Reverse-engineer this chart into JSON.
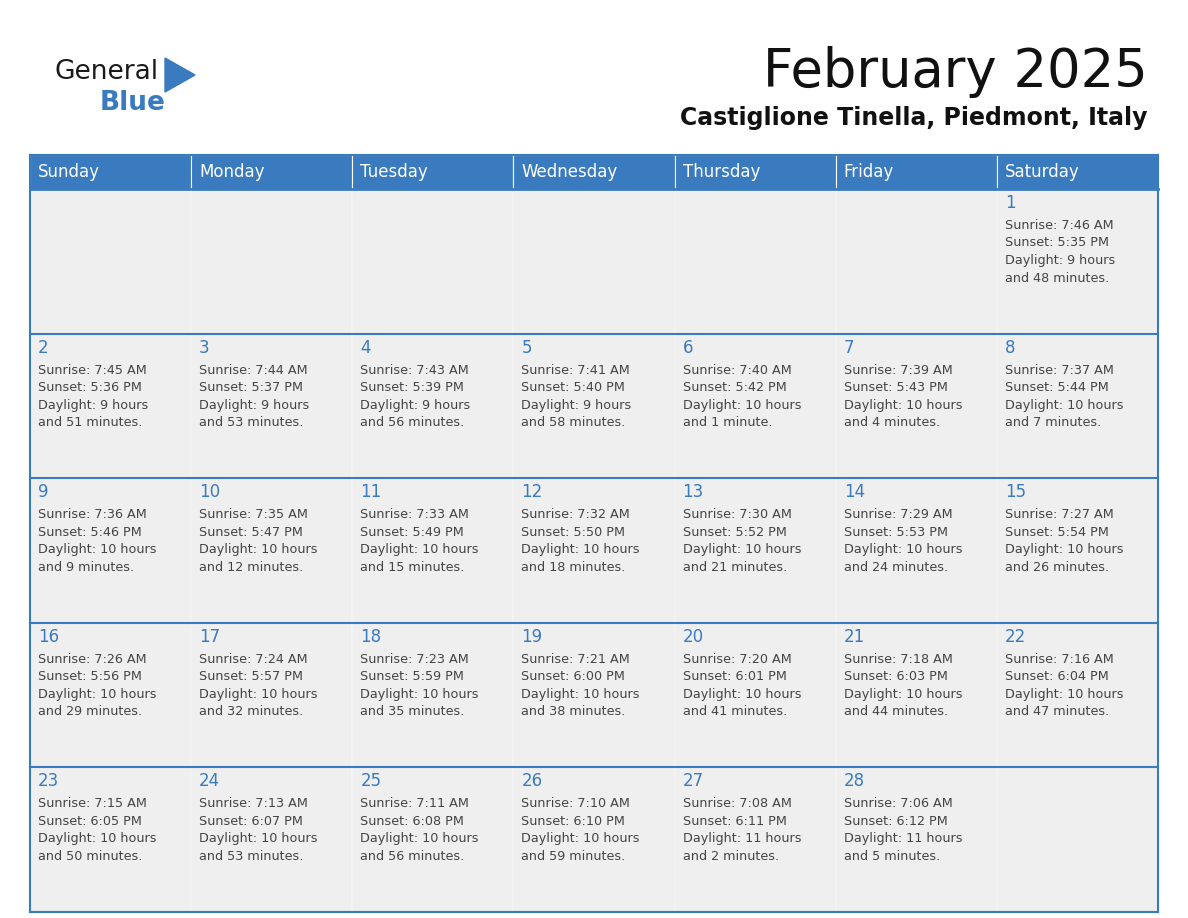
{
  "title": "February 2025",
  "subtitle": "Castiglione Tinella, Piedmont, Italy",
  "header_color": "#3a7abf",
  "header_text_color": "#ffffff",
  "border_color": "#3a7abf",
  "day_number_color": "#3a7abf",
  "text_color": "#444444",
  "cell_bg_color": "#efefef",
  "days_of_week": [
    "Sunday",
    "Monday",
    "Tuesday",
    "Wednesday",
    "Thursday",
    "Friday",
    "Saturday"
  ],
  "weeks": [
    [
      {
        "day": null,
        "info": null
      },
      {
        "day": null,
        "info": null
      },
      {
        "day": null,
        "info": null
      },
      {
        "day": null,
        "info": null
      },
      {
        "day": null,
        "info": null
      },
      {
        "day": null,
        "info": null
      },
      {
        "day": 1,
        "info": "Sunrise: 7:46 AM\nSunset: 5:35 PM\nDaylight: 9 hours\nand 48 minutes."
      }
    ],
    [
      {
        "day": 2,
        "info": "Sunrise: 7:45 AM\nSunset: 5:36 PM\nDaylight: 9 hours\nand 51 minutes."
      },
      {
        "day": 3,
        "info": "Sunrise: 7:44 AM\nSunset: 5:37 PM\nDaylight: 9 hours\nand 53 minutes."
      },
      {
        "day": 4,
        "info": "Sunrise: 7:43 AM\nSunset: 5:39 PM\nDaylight: 9 hours\nand 56 minutes."
      },
      {
        "day": 5,
        "info": "Sunrise: 7:41 AM\nSunset: 5:40 PM\nDaylight: 9 hours\nand 58 minutes."
      },
      {
        "day": 6,
        "info": "Sunrise: 7:40 AM\nSunset: 5:42 PM\nDaylight: 10 hours\nand 1 minute."
      },
      {
        "day": 7,
        "info": "Sunrise: 7:39 AM\nSunset: 5:43 PM\nDaylight: 10 hours\nand 4 minutes."
      },
      {
        "day": 8,
        "info": "Sunrise: 7:37 AM\nSunset: 5:44 PM\nDaylight: 10 hours\nand 7 minutes."
      }
    ],
    [
      {
        "day": 9,
        "info": "Sunrise: 7:36 AM\nSunset: 5:46 PM\nDaylight: 10 hours\nand 9 minutes."
      },
      {
        "day": 10,
        "info": "Sunrise: 7:35 AM\nSunset: 5:47 PM\nDaylight: 10 hours\nand 12 minutes."
      },
      {
        "day": 11,
        "info": "Sunrise: 7:33 AM\nSunset: 5:49 PM\nDaylight: 10 hours\nand 15 minutes."
      },
      {
        "day": 12,
        "info": "Sunrise: 7:32 AM\nSunset: 5:50 PM\nDaylight: 10 hours\nand 18 minutes."
      },
      {
        "day": 13,
        "info": "Sunrise: 7:30 AM\nSunset: 5:52 PM\nDaylight: 10 hours\nand 21 minutes."
      },
      {
        "day": 14,
        "info": "Sunrise: 7:29 AM\nSunset: 5:53 PM\nDaylight: 10 hours\nand 24 minutes."
      },
      {
        "day": 15,
        "info": "Sunrise: 7:27 AM\nSunset: 5:54 PM\nDaylight: 10 hours\nand 26 minutes."
      }
    ],
    [
      {
        "day": 16,
        "info": "Sunrise: 7:26 AM\nSunset: 5:56 PM\nDaylight: 10 hours\nand 29 minutes."
      },
      {
        "day": 17,
        "info": "Sunrise: 7:24 AM\nSunset: 5:57 PM\nDaylight: 10 hours\nand 32 minutes."
      },
      {
        "day": 18,
        "info": "Sunrise: 7:23 AM\nSunset: 5:59 PM\nDaylight: 10 hours\nand 35 minutes."
      },
      {
        "day": 19,
        "info": "Sunrise: 7:21 AM\nSunset: 6:00 PM\nDaylight: 10 hours\nand 38 minutes."
      },
      {
        "day": 20,
        "info": "Sunrise: 7:20 AM\nSunset: 6:01 PM\nDaylight: 10 hours\nand 41 minutes."
      },
      {
        "day": 21,
        "info": "Sunrise: 7:18 AM\nSunset: 6:03 PM\nDaylight: 10 hours\nand 44 minutes."
      },
      {
        "day": 22,
        "info": "Sunrise: 7:16 AM\nSunset: 6:04 PM\nDaylight: 10 hours\nand 47 minutes."
      }
    ],
    [
      {
        "day": 23,
        "info": "Sunrise: 7:15 AM\nSunset: 6:05 PM\nDaylight: 10 hours\nand 50 minutes."
      },
      {
        "day": 24,
        "info": "Sunrise: 7:13 AM\nSunset: 6:07 PM\nDaylight: 10 hours\nand 53 minutes."
      },
      {
        "day": 25,
        "info": "Sunrise: 7:11 AM\nSunset: 6:08 PM\nDaylight: 10 hours\nand 56 minutes."
      },
      {
        "day": 26,
        "info": "Sunrise: 7:10 AM\nSunset: 6:10 PM\nDaylight: 10 hours\nand 59 minutes."
      },
      {
        "day": 27,
        "info": "Sunrise: 7:08 AM\nSunset: 6:11 PM\nDaylight: 11 hours\nand 2 minutes."
      },
      {
        "day": 28,
        "info": "Sunrise: 7:06 AM\nSunset: 6:12 PM\nDaylight: 11 hours\nand 5 minutes."
      },
      {
        "day": null,
        "info": null
      }
    ]
  ],
  "logo_text_general": "General",
  "logo_text_blue": "Blue",
  "logo_triangle_color": "#3a7abf",
  "logo_general_color": "#1a1a1a",
  "logo_blue_color": "#3a7abf",
  "title_fontsize": 38,
  "subtitle_fontsize": 17,
  "header_fontsize": 12,
  "day_num_fontsize": 12,
  "info_fontsize": 9.2,
  "logo_general_fontsize": 19,
  "logo_blue_fontsize": 19
}
